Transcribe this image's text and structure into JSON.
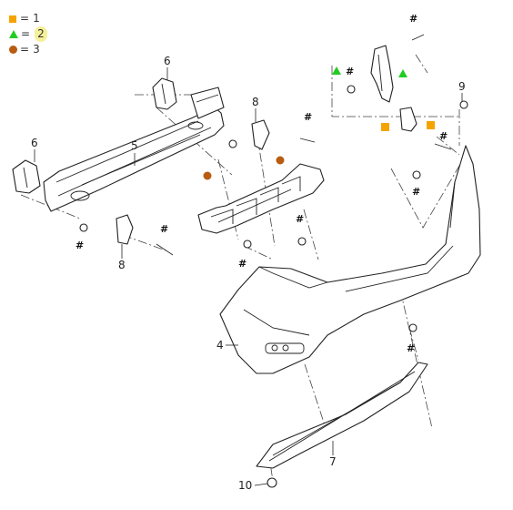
{
  "legend": [
    {
      "symbol": "square-orange",
      "eq": "=",
      "value": "1"
    },
    {
      "symbol": "triangle-green",
      "eq": "=",
      "value": "2"
    },
    {
      "symbol": "circle-brown",
      "eq": "=",
      "value": "3"
    }
  ],
  "labels": {
    "l4": "4",
    "l5": "5",
    "l6a": "6",
    "l6b": "6",
    "l7": "7",
    "l8a": "8",
    "l8b": "8",
    "l9": "9",
    "l10": "10"
  },
  "hash": "#",
  "colors": {
    "square": "#f5a300",
    "triangle": "#22cc22",
    "circle": "#b85c12",
    "highlight": "#f5f09a"
  }
}
